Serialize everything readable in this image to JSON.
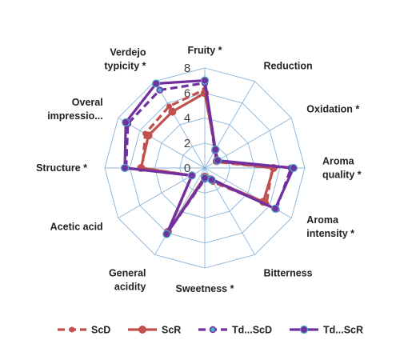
{
  "chart_data": {
    "type": "radar",
    "title": "",
    "rmax": 8,
    "ticks": [
      0,
      2,
      4,
      6,
      8
    ],
    "ticks_shown": [
      "0",
      "2",
      "4",
      "6",
      "8"
    ],
    "axes": [
      "Fruity *",
      "Reduction",
      "Oxidation *",
      "Aroma quality *",
      "Aroma intensity *",
      "Bitterness",
      "Sweetness *",
      "General acidity",
      "Acetic acid",
      "Structure *",
      "Overal impressio...",
      "Verdejo typicity *"
    ],
    "axis_label_lines": [
      [
        "Fruity *"
      ],
      [
        "Reduction"
      ],
      [
        "Oxidation *"
      ],
      [
        "Aroma",
        "quality *"
      ],
      [
        "Aroma",
        "intensity *"
      ],
      [
        "Bitterness"
      ],
      [
        "Sweetness *"
      ],
      [
        "General",
        "acidity"
      ],
      [
        "Acetic acid"
      ],
      [
        "Structure *"
      ],
      [
        "Overal",
        "impressio..."
      ],
      [
        "Verdejo",
        "typicity *"
      ]
    ],
    "series": [
      {
        "name": "ScD",
        "color": "#c0504d",
        "dashed": true,
        "marker": "circle-small",
        "values": [
          6.3,
          1.7,
          1.0,
          5.4,
          5.7,
          1.3,
          0.8,
          5.8,
          1.2,
          5.0,
          5.5,
          5.7
        ]
      },
      {
        "name": "ScR",
        "color": "#c0504d",
        "dashed": false,
        "marker": "circle",
        "values": [
          6.0,
          1.7,
          1.1,
          5.5,
          5.4,
          1.1,
          0.7,
          5.9,
          1.2,
          5.1,
          5.2,
          5.2
        ]
      },
      {
        "name": "Td...ScD",
        "color": "#7030a0",
        "dashed": true,
        "marker": "circle-teal",
        "values": [
          6.8,
          1.6,
          1.1,
          6.9,
          6.6,
          1.0,
          0.9,
          6.0,
          1.2,
          6.3,
          7.1,
          7.2
        ]
      },
      {
        "name": "Td...ScR",
        "color": "#7030a0",
        "dashed": false,
        "marker": "circle",
        "values": [
          7.0,
          1.7,
          1.2,
          7.1,
          6.5,
          1.1,
          0.8,
          6.1,
          1.2,
          6.4,
          7.3,
          7.8
        ]
      }
    ],
    "grid": true,
    "legend_position": "bottom"
  }
}
